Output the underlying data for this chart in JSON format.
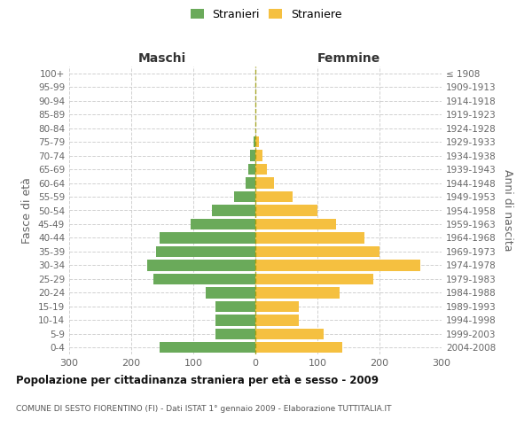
{
  "age_groups": [
    "100+",
    "95-99",
    "90-94",
    "85-89",
    "80-84",
    "75-79",
    "70-74",
    "65-69",
    "60-64",
    "55-59",
    "50-54",
    "45-49",
    "40-44",
    "35-39",
    "30-34",
    "25-29",
    "20-24",
    "15-19",
    "10-14",
    "5-9",
    "0-4"
  ],
  "birth_years": [
    "≤ 1908",
    "1909-1913",
    "1914-1918",
    "1919-1923",
    "1924-1928",
    "1929-1933",
    "1934-1938",
    "1939-1943",
    "1944-1948",
    "1949-1953",
    "1954-1958",
    "1959-1963",
    "1964-1968",
    "1969-1973",
    "1974-1978",
    "1979-1983",
    "1984-1988",
    "1989-1993",
    "1994-1998",
    "1999-2003",
    "2004-2008"
  ],
  "males": [
    0,
    0,
    0,
    0,
    0,
    3,
    8,
    12,
    16,
    35,
    70,
    105,
    155,
    160,
    175,
    165,
    80,
    65,
    65,
    65,
    155
  ],
  "females": [
    0,
    0,
    0,
    0,
    0,
    5,
    12,
    18,
    30,
    60,
    100,
    130,
    175,
    200,
    265,
    190,
    135,
    70,
    70,
    110,
    140
  ],
  "male_color": "#6aaa5a",
  "female_color": "#f5c040",
  "background_color": "#ffffff",
  "grid_color": "#cccccc",
  "title": "Popolazione per cittadinanza straniera per età e sesso - 2009",
  "subtitle": "COMUNE DI SESTO FIORENTINO (FI) - Dati ISTAT 1° gennaio 2009 - Elaborazione TUTTITALIA.IT",
  "ylabel_left": "Fasce di età",
  "ylabel_right": "Anni di nascita",
  "legend_male": "Stranieri",
  "legend_female": "Straniere",
  "header_left": "Maschi",
  "header_right": "Femmine",
  "xlim": 300,
  "bar_height": 0.8
}
